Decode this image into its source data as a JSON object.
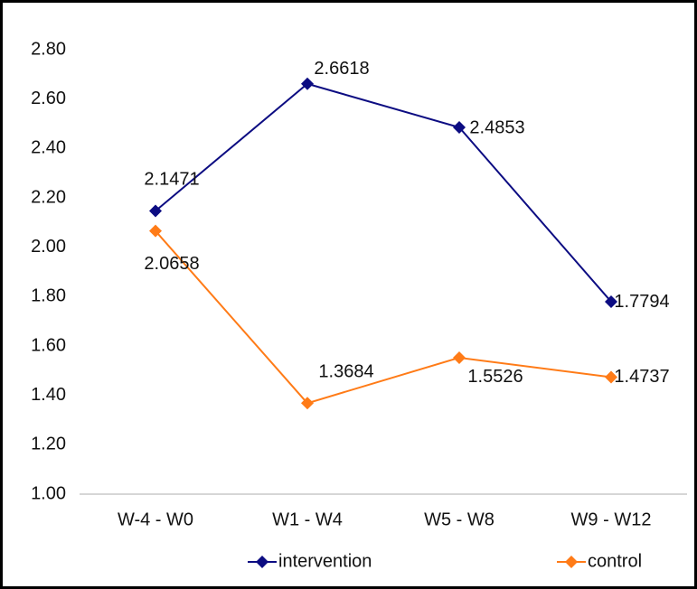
{
  "chart_data": {
    "type": "line",
    "categories": [
      "W-4 - W0",
      "W1 - W4",
      "W5 - W8",
      "W9 - W12"
    ],
    "series": [
      {
        "name": "intervention",
        "color": "#0c0c82",
        "values": [
          2.1471,
          2.6618,
          2.4853,
          1.7794
        ]
      },
      {
        "name": "control",
        "color": "#ff7b17",
        "values": [
          2.0658,
          1.3684,
          1.5526,
          1.4737
        ]
      }
    ],
    "ylim": [
      1.0,
      2.8
    ],
    "yticks": [
      {
        "value": 1.0,
        "label": "1.00"
      },
      {
        "value": 1.2,
        "label": "1.20"
      },
      {
        "value": 1.4,
        "label": "1.40"
      },
      {
        "value": 1.6,
        "label": "1.60"
      },
      {
        "value": 1.8,
        "label": "1.80"
      },
      {
        "value": 2.0,
        "label": "2.00"
      },
      {
        "value": 2.2,
        "label": "2.20"
      },
      {
        "value": 2.4,
        "label": "2.40"
      },
      {
        "value": 2.6,
        "label": "2.60"
      },
      {
        "value": 2.8,
        "label": "2.80"
      }
    ],
    "grid": false,
    "legend": "bottom"
  }
}
